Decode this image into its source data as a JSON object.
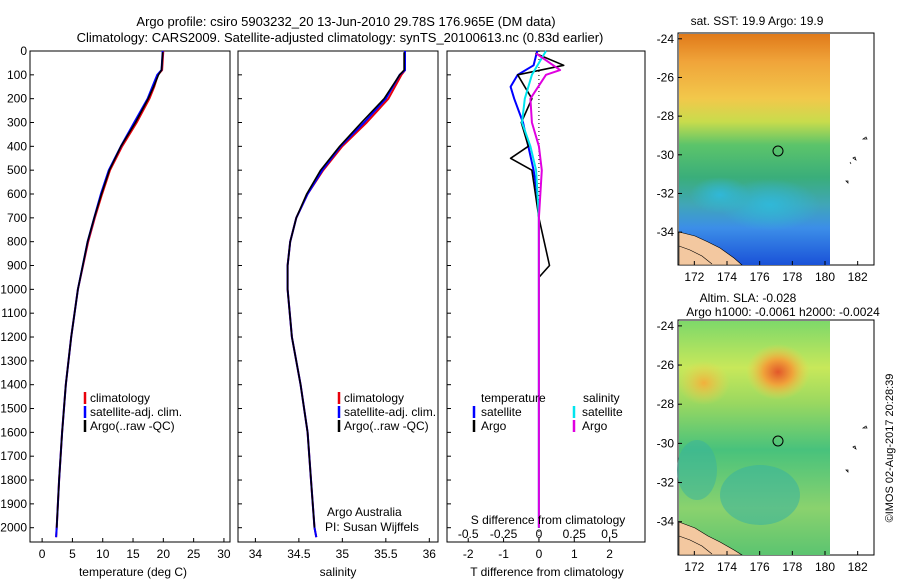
{
  "title": {
    "line1": "Argo profile: csiro 5903232_20 13-Jun-2010 29.78S 176.965E (DM data)",
    "line2": "Climatology: CARS2009. Satellite-adjusted climatology: synTS_20100613.nc (0.83d earlier)"
  },
  "credit": "Argo Australia",
  "pi": "PI: Susan Wijffels",
  "stamp": "©IMOS 02-Aug-2017 20:28:39",
  "colors": {
    "clim": "#e8000b",
    "sat": "#0000ff",
    "argo": "#000000",
    "sat_sal": "#00e5ee",
    "argo_sal": "#e000e0"
  },
  "chart_data": [
    {
      "type": "line",
      "id": "temperature",
      "xlabel": "temperature (deg C)",
      "ylabel": "",
      "xlim": [
        -2,
        31
      ],
      "ylim": [
        2060,
        0
      ],
      "xticks": [
        0,
        5,
        10,
        15,
        20,
        25,
        30
      ],
      "yticks": [
        0,
        100,
        200,
        300,
        400,
        500,
        600,
        700,
        800,
        900,
        1000,
        1100,
        1200,
        1300,
        1400,
        1500,
        1600,
        1700,
        1800,
        1900,
        2000
      ],
      "legend": [
        "climatology",
        "satellite-adj. clim.",
        "Argo(..raw -QC)"
      ],
      "series": [
        {
          "name": "climatology",
          "color": "#e8000b",
          "depth": [
            0,
            80,
            100,
            150,
            200,
            300,
            400,
            500,
            600,
            700,
            800,
            1000,
            1200,
            1400,
            1600,
            1800,
            2000,
            2040
          ],
          "values": [
            20.0,
            19.8,
            19.1,
            18.5,
            17.7,
            15.6,
            13.2,
            11.2,
            9.9,
            8.7,
            7.6,
            5.9,
            4.8,
            3.9,
            3.3,
            2.8,
            2.4,
            2.3
          ]
        },
        {
          "name": "satellite-adj. clim.",
          "color": "#0000ff",
          "depth": [
            0,
            80,
            100,
            150,
            200,
            300,
            400,
            500,
            600,
            700,
            800,
            1000,
            1200,
            1400,
            1600,
            1800,
            2000,
            2040
          ],
          "values": [
            19.9,
            19.7,
            19.0,
            18.2,
            17.4,
            15.2,
            13.0,
            11.0,
            9.7,
            8.6,
            7.5,
            5.9,
            4.8,
            3.9,
            3.3,
            2.8,
            2.4,
            2.3
          ]
        },
        {
          "name": "Argo(..raw -QC)",
          "color": "#000000",
          "depth": [
            5,
            80,
            100,
            150,
            200,
            300,
            400,
            500,
            600,
            700,
            800,
            1000,
            1200,
            1400,
            1600,
            1800,
            2000
          ],
          "values": [
            19.9,
            19.7,
            19.2,
            18.4,
            17.5,
            15.4,
            13.0,
            11.1,
            9.8,
            8.6,
            7.5,
            5.9,
            4.8,
            3.9,
            3.3,
            2.8,
            2.4
          ]
        }
      ]
    },
    {
      "type": "line",
      "id": "salinity",
      "xlabel": "salinity",
      "xlim": [
        33.8,
        36.1
      ],
      "ylim": [
        2060,
        0
      ],
      "xticks": [
        34,
        34.5,
        35,
        35.5,
        36
      ],
      "legend": [
        "climatology",
        "satellite-adj. clim.",
        "Argo(..raw -QC)"
      ],
      "series": [
        {
          "name": "climatology",
          "color": "#e8000b",
          "depth": [
            0,
            80,
            100,
            200,
            300,
            400,
            500,
            600,
            700,
            800,
            900,
            1000,
            1200,
            1400,
            1600,
            1800,
            2000,
            2040
          ],
          "values": [
            35.72,
            35.72,
            35.68,
            35.53,
            35.28,
            35.0,
            34.78,
            34.6,
            34.47,
            34.4,
            34.37,
            34.37,
            34.42,
            34.52,
            34.6,
            34.64,
            34.68,
            34.7
          ]
        },
        {
          "name": "satellite-adj. clim.",
          "color": "#0000ff",
          "depth": [
            0,
            80,
            100,
            200,
            300,
            400,
            500,
            600,
            700,
            800,
            900,
            1000,
            1200,
            1400,
            1600,
            1800,
            2000,
            2040
          ],
          "values": [
            35.72,
            35.72,
            35.66,
            35.5,
            35.25,
            34.98,
            34.77,
            34.6,
            34.47,
            34.4,
            34.37,
            34.37,
            34.42,
            34.52,
            34.6,
            34.64,
            34.68,
            34.7
          ]
        },
        {
          "name": "Argo(..raw -QC)",
          "color": "#000000",
          "depth": [
            5,
            80,
            100,
            200,
            300,
            400,
            500,
            600,
            700,
            800,
            900,
            1000,
            1200,
            1400,
            1600,
            1800,
            2000
          ],
          "values": [
            35.71,
            35.71,
            35.66,
            35.48,
            35.22,
            34.97,
            34.75,
            34.59,
            34.47,
            34.4,
            34.37,
            34.37,
            34.42,
            34.52,
            34.6,
            34.64,
            34.68
          ]
        }
      ]
    },
    {
      "type": "line",
      "id": "difference",
      "xlabel": "T difference from climatology",
      "xlabel2": "S difference from climatology",
      "xlim": [
        -2.6,
        3.0
      ],
      "ylim": [
        2060,
        0
      ],
      "xticks": [
        -2,
        -1,
        0,
        1,
        2
      ],
      "sticks": [
        {
          "v": -0.5,
          "label": "-0.5"
        },
        {
          "v": -0.25,
          "label": "-0.25"
        },
        {
          "v": 0,
          "label": "0"
        },
        {
          "v": 0.25,
          "label": "0.25"
        },
        {
          "v": 0.5,
          "label": "0.5"
        }
      ],
      "legend_temperature": [
        "temperature",
        "satellite",
        "Argo"
      ],
      "legend_salinity": [
        "salinity",
        "satellite",
        "Argo"
      ],
      "series": [
        {
          "name": "temperature satellite",
          "color": "#0000ff",
          "depth": [
            0,
            60,
            100,
            150,
            200,
            300,
            400,
            500,
            600,
            700,
            800,
            1000,
            1500,
            2000
          ],
          "values": [
            -0.05,
            -0.15,
            -0.6,
            -0.8,
            -0.7,
            -0.45,
            -0.3,
            -0.15,
            -0.05,
            0.0,
            0.0,
            0.0,
            0.0,
            0.0
          ]
        },
        {
          "name": "temperature Argo",
          "color": "#000000",
          "depth": [
            10,
            60,
            100,
            150,
            200,
            300,
            400,
            450,
            500,
            600,
            700,
            900,
            950,
            1500,
            2000
          ],
          "values": [
            -0.1,
            0.7,
            -0.6,
            -0.4,
            -0.2,
            -0.5,
            -0.3,
            -0.8,
            -0.2,
            -0.1,
            0.0,
            0.3,
            0.0,
            0.0,
            0.0
          ]
        },
        {
          "name": "salinity satellite",
          "color": "#00e5ee",
          "depth": [
            0,
            100,
            200,
            300,
            400,
            500,
            700,
            1000,
            2000
          ],
          "values": [
            0.05,
            -0.05,
            -0.1,
            -0.12,
            -0.06,
            -0.02,
            0.0,
            0.0,
            0.0
          ]
        },
        {
          "name": "salinity Argo",
          "color": "#e000e0",
          "depth": [
            10,
            80,
            100,
            200,
            300,
            400,
            500,
            700,
            1000,
            2000
          ],
          "values": [
            -0.02,
            0.15,
            0.05,
            -0.06,
            -0.05,
            0.0,
            0.02,
            0.0,
            0.0,
            0.0
          ]
        }
      ]
    },
    {
      "type": "heatmap",
      "id": "sst-map",
      "title": "sat. SST: 19.9 Argo: 19.9",
      "xlim": [
        171,
        183
      ],
      "ylim": [
        -35.7,
        -23.7
      ],
      "xticks": [
        172,
        174,
        176,
        178,
        180,
        182
      ],
      "yticks": [
        -24,
        -26,
        -28,
        -30,
        -32,
        -34
      ],
      "data_xmax": 180,
      "marker": {
        "lon": 176.965,
        "lat": -29.78
      }
    },
    {
      "type": "heatmap",
      "id": "sla-map",
      "title": "Altim. SLA: -0.028",
      "subtitle": "Argo h1000: -0.0061 h2000: -0.0024",
      "xlim": [
        171,
        183
      ],
      "ylim": [
        -35.7,
        -23.7
      ],
      "xticks": [
        172,
        174,
        176,
        178,
        180,
        182
      ],
      "yticks": [
        -24,
        -26,
        -28,
        -30,
        -32,
        -34
      ],
      "data_xmax": 180,
      "marker": {
        "lon": 176.965,
        "lat": -29.78
      }
    }
  ]
}
